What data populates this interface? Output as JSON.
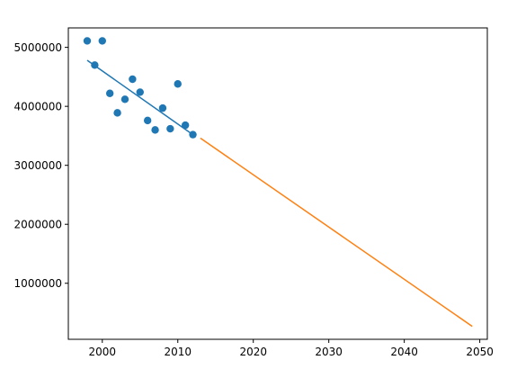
{
  "chart_data": {
    "type": "scatter",
    "title": "",
    "xlabel": "",
    "ylabel": "",
    "xlim": [
      1995.5,
      2051.0
    ],
    "ylim": [
      50000,
      5330000
    ],
    "xticks": [
      2000,
      2010,
      2020,
      2030,
      2040,
      2050
    ],
    "xtick_labels": [
      "2000",
      "2010",
      "2020",
      "2030",
      "2040",
      "2050"
    ],
    "yticks": [
      1000000,
      2000000,
      3000000,
      4000000,
      5000000
    ],
    "ytick_labels": [
      "1000000",
      "2000000",
      "3000000",
      "4000000",
      "5000000"
    ],
    "grid": false,
    "legend": false,
    "series": [
      {
        "kind": "scatter",
        "color": "#1f77b4",
        "x": [
          1998,
          1999,
          2000,
          2001,
          2002,
          2003,
          2004,
          2005,
          2006,
          2007,
          2008,
          2009,
          2010,
          2011,
          2012
        ],
        "y": [
          5110000,
          4700000,
          5110000,
          4220000,
          3890000,
          4120000,
          4460000,
          4240000,
          3760000,
          3600000,
          3970000,
          3620000,
          4380000,
          3680000,
          3520000
        ]
      },
      {
        "kind": "line",
        "color": "#1f77b4",
        "x": [
          1998,
          2012
        ],
        "y": [
          4780000,
          3520000
        ]
      },
      {
        "kind": "line",
        "color": "#ff7f0e",
        "x": [
          2013,
          2049
        ],
        "y": [
          3460000,
          270000
        ]
      }
    ]
  }
}
